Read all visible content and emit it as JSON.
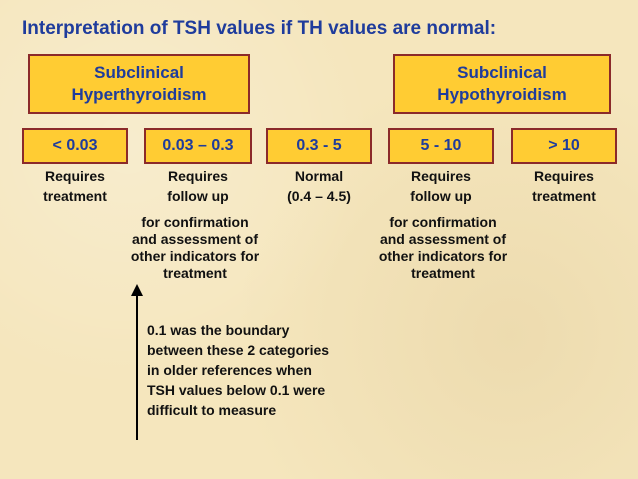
{
  "title": "Interpretation of TSH values if TH values are normal:",
  "categories": {
    "hyper": [
      "Subclinical",
      "Hyperthyroidism"
    ],
    "hypo": [
      "Subclinical",
      "Hypothyroidism"
    ]
  },
  "ranges": [
    {
      "range": "< 0.03",
      "label": [
        "Requires",
        "treatment"
      ]
    },
    {
      "range": "0.03 – 0.3",
      "label": [
        "Requires",
        "follow up"
      ]
    },
    {
      "range": "0.3 - 5",
      "label": [
        "Normal",
        "(0.4 – 4.5)"
      ]
    },
    {
      "range": "5 - 10",
      "label": [
        "Requires",
        "follow up"
      ]
    },
    {
      "range": "> 10",
      "label": [
        "Requires",
        "treatment"
      ]
    }
  ],
  "followup_note": [
    "for confirmation",
    "and assessment of",
    "other indicators for",
    "treatment"
  ],
  "boundary_note": [
    "0.1 was the boundary",
    "between these 2 categories",
    "in older references when",
    "TSH values below 0.1 were",
    "difficult to measure"
  ],
  "colors": {
    "box_fill": "#ffcc33",
    "box_border": "#8b2a2a",
    "title_text": "#1f3c9c",
    "background": "#f5e6bd"
  }
}
